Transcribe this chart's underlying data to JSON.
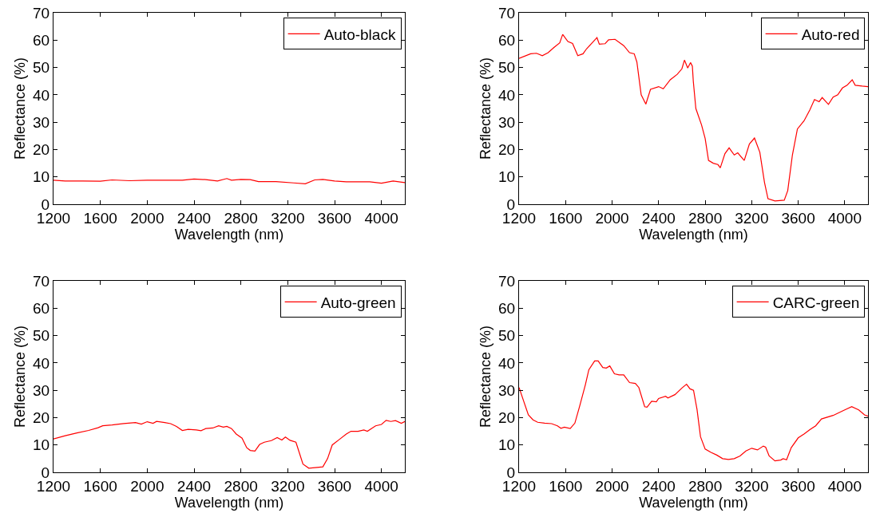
{
  "chart_data": [
    {
      "type": "line",
      "xlabel": "Wavelength (nm)",
      "ylabel": "Reflectance (%)",
      "xlim": [
        1200,
        4200
      ],
      "xticks": [
        1200,
        1600,
        2000,
        2400,
        2800,
        3200,
        3600,
        4000
      ],
      "ylim": [
        0,
        70
      ],
      "yticks": [
        0,
        10,
        20,
        30,
        40,
        50,
        60,
        70
      ],
      "legend": "top right",
      "marker": "none",
      "line_style": "solid",
      "series": [
        {
          "name": "Auto-black",
          "color": "#ff0000",
          "x": [
            1200,
            1300,
            1450,
            1600,
            1700,
            1850,
            2000,
            2100,
            2300,
            2400,
            2500,
            2600,
            2680,
            2720,
            2800,
            2880,
            2950,
            3100,
            3250,
            3350,
            3430,
            3500,
            3600,
            3700,
            3900,
            4000,
            4100,
            4200
          ],
          "values": [
            8.8,
            8.5,
            8.5,
            8.4,
            8.9,
            8.6,
            8.8,
            8.8,
            8.8,
            9.2,
            9.0,
            8.5,
            9.4,
            8.8,
            9.1,
            9.0,
            8.3,
            8.3,
            7.8,
            7.5,
            8.9,
            9.1,
            8.5,
            8.2,
            8.2,
            7.7,
            8.5,
            7.9
          ]
        }
      ]
    },
    {
      "type": "line",
      "xlabel": "Wavelength (nm)",
      "ylabel": "Reflectance (%)",
      "xlim": [
        1200,
        4200
      ],
      "xticks": [
        1200,
        1600,
        2000,
        2400,
        2800,
        3200,
        3600,
        4000
      ],
      "ylim": [
        0,
        70
      ],
      "yticks": [
        0,
        10,
        20,
        30,
        40,
        50,
        60,
        70
      ],
      "legend": "top right",
      "marker": "none",
      "line_style": "solid",
      "series": [
        {
          "name": "Auto-red",
          "color": "#ff0000",
          "x": [
            1200,
            1300,
            1350,
            1400,
            1450,
            1500,
            1550,
            1575,
            1620,
            1660,
            1705,
            1750,
            1780,
            1870,
            1890,
            1940,
            1970,
            2025,
            2100,
            2150,
            2190,
            2213,
            2250,
            2290,
            2330,
            2400,
            2440,
            2500,
            2560,
            2600,
            2622,
            2650,
            2674,
            2690,
            2698,
            2720,
            2769,
            2800,
            2829,
            2870,
            2910,
            2930,
            2970,
            3006,
            3050,
            3080,
            3136,
            3180,
            3224,
            3270,
            3310,
            3340,
            3400,
            3480,
            3510,
            3550,
            3593,
            3650,
            3700,
            3740,
            3780,
            3806,
            3860,
            3900,
            3940,
            3980,
            4020,
            4064,
            4090,
            4150,
            4200
          ],
          "values": [
            53.3,
            55,
            55.2,
            54.3,
            55.4,
            57.3,
            59,
            62.1,
            59.5,
            58.8,
            54.3,
            55,
            56.8,
            60.9,
            58.5,
            58.7,
            60.1,
            60.3,
            58,
            55.4,
            55,
            52,
            40,
            36.6,
            42,
            43,
            42.2,
            45.5,
            47.5,
            49.5,
            52.7,
            49.8,
            51.8,
            50.5,
            45,
            35,
            29,
            24,
            16,
            15,
            14.5,
            13.3,
            18.5,
            20.6,
            18,
            18.8,
            16,
            22,
            24.2,
            19,
            8,
            2,
            1.2,
            1.5,
            5,
            18,
            27.5,
            30.5,
            34.5,
            38.3,
            37.5,
            39,
            36.5,
            39.2,
            40,
            42.5,
            43.5,
            45.5,
            43.5,
            43.2,
            43
          ]
        }
      ]
    },
    {
      "type": "line",
      "xlabel": "Wavelength (nm)",
      "ylabel": "Reflectance (%)",
      "xlim": [
        1200,
        4200
      ],
      "xticks": [
        1200,
        1600,
        2000,
        2400,
        2800,
        3200,
        3600,
        4000
      ],
      "ylim": [
        0,
        70
      ],
      "yticks": [
        0,
        10,
        20,
        30,
        40,
        50,
        60,
        70
      ],
      "legend": "top right",
      "marker": "none",
      "line_style": "solid",
      "series": [
        {
          "name": "Auto-green",
          "color": "#ff0000",
          "x": [
            1200,
            1300,
            1400,
            1500,
            1580,
            1620,
            1700,
            1800,
            1900,
            1950,
            2000,
            2050,
            2080,
            2150,
            2200,
            2250,
            2300,
            2350,
            2420,
            2460,
            2500,
            2560,
            2610,
            2650,
            2680,
            2720,
            2760,
            2810,
            2850,
            2880,
            2920,
            2960,
            3000,
            3060,
            3110,
            3150,
            3180,
            3220,
            3270,
            3300,
            3330,
            3380,
            3450,
            3500,
            3540,
            3580,
            3640,
            3700,
            3740,
            3800,
            3850,
            3880,
            3950,
            4000,
            4040,
            4080,
            4120,
            4170,
            4200
          ],
          "values": [
            12.2,
            13.4,
            14.4,
            15.3,
            16.3,
            17,
            17.3,
            17.8,
            18.2,
            17.6,
            18.5,
            17.9,
            18.6,
            18.2,
            17.8,
            16.8,
            15.3,
            15.7,
            15.5,
            15.2,
            16,
            16.2,
            17,
            16.5,
            16.8,
            16,
            14,
            12.5,
            9,
            8,
            7.8,
            10.2,
            11,
            11.6,
            12.7,
            11.8,
            12.9,
            11.7,
            11,
            7,
            3,
            1.5,
            1.8,
            2,
            5,
            10,
            12,
            14,
            15,
            15,
            15.5,
            15,
            17,
            17.5,
            19,
            18.6,
            18.9,
            17.9,
            18.6
          ]
        }
      ]
    },
    {
      "type": "line",
      "xlabel": "Wavelength (nm)",
      "ylabel": "Reflectance (%)",
      "xlim": [
        1200,
        4200
      ],
      "xticks": [
        1200,
        1600,
        2000,
        2400,
        2800,
        3200,
        3600,
        4000
      ],
      "ylim": [
        0,
        70
      ],
      "yticks": [
        0,
        10,
        20,
        30,
        40,
        50,
        60,
        70
      ],
      "legend": "top right",
      "marker": "none",
      "line_style": "solid",
      "series": [
        {
          "name": "CARC-green",
          "color": "#ff0000",
          "x": [
            1200,
            1240,
            1280,
            1320,
            1360,
            1420,
            1480,
            1530,
            1560,
            1590,
            1640,
            1680,
            1720,
            1770,
            1800,
            1850,
            1880,
            1920,
            1950,
            1980,
            2020,
            2060,
            2100,
            2150,
            2200,
            2230,
            2280,
            2300,
            2340,
            2380,
            2400,
            2460,
            2480,
            2540,
            2600,
            2640,
            2670,
            2700,
            2730,
            2760,
            2800,
            2850,
            2900,
            2950,
            3000,
            3050,
            3100,
            3150,
            3200,
            3250,
            3300,
            3320,
            3350,
            3400,
            3450,
            3470,
            3500,
            3540,
            3600,
            3650,
            3700,
            3750,
            3800,
            3900,
            4000,
            4060,
            4120,
            4170,
            4200
          ],
          "values": [
            31,
            26,
            21,
            19.2,
            18.3,
            18,
            17.8,
            17,
            16.1,
            16.5,
            16,
            18,
            24,
            32,
            37.5,
            40.7,
            40.7,
            38.3,
            38.1,
            38.9,
            36,
            35.6,
            35.6,
            32.8,
            32.5,
            31,
            24,
            23.8,
            26,
            25.8,
            27,
            27.8,
            27.2,
            28.4,
            30.8,
            32.2,
            30.5,
            30,
            23,
            13,
            8.5,
            7.3,
            6.3,
            5,
            4.7,
            5,
            6,
            7.8,
            8.8,
            8.2,
            9.6,
            9.2,
            6,
            4.2,
            4.5,
            5,
            4.6,
            9,
            12.6,
            14,
            15.6,
            17,
            19.5,
            20.8,
            22.8,
            24,
            22.8,
            21,
            20.5
          ]
        }
      ]
    }
  ]
}
